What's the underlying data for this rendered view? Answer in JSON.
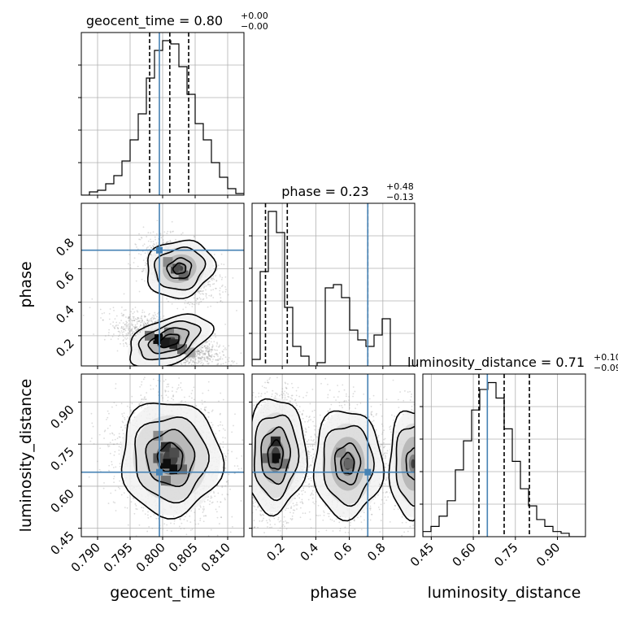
{
  "chart_data": {
    "type": "corner",
    "grid": true,
    "colors": {
      "truth": "#4682b4",
      "histogram": "#000000",
      "quantile": "#000000",
      "density_low": "#e8e8e8",
      "density_high": "#000000",
      "grid": "#b0b0b0",
      "samples": "#9a9a9a"
    },
    "parameters": [
      {
        "name": "geocent_time",
        "axis_label": "geocent_time",
        "lim": [
          0.7875,
          0.8125
        ],
        "ticks": [
          "0.790",
          "0.795",
          "0.800",
          "0.805",
          "0.810"
        ],
        "tick_values": [
          0.79,
          0.795,
          0.8,
          0.805,
          0.81
        ],
        "truth": 0.7995
      },
      {
        "name": "phase",
        "axis_label": "phase",
        "lim": [
          0.02,
          0.99
        ],
        "ticks": [
          "0.2",
          "0.4",
          "0.6",
          "0.8"
        ],
        "tick_values": [
          0.2,
          0.4,
          0.6,
          0.8
        ],
        "truth": 0.71
      },
      {
        "name": "luminosity_distance",
        "axis_label": "luminosity_distance",
        "lim": [
          0.42,
          1.0
        ],
        "ticks": [
          "0.45",
          "0.60",
          "0.75",
          "0.90"
        ],
        "tick_values": [
          0.45,
          0.6,
          0.75,
          0.9
        ],
        "truth": 0.65
      }
    ],
    "titles": [
      {
        "param": "geocent_time",
        "text": "geocent_time = 0.80",
        "plus": "+0.00",
        "minus": "−0.00"
      },
      {
        "param": "phase",
        "text": "phase = 0.23",
        "plus": "+0.48",
        "minus": "−0.13"
      },
      {
        "param": "luminosity_distance",
        "text": "luminosity_distance = 0.71",
        "plus": "+0.10",
        "minus": "−0.09"
      }
    ],
    "histograms": [
      {
        "param": "geocent_time",
        "bin_start": 0.7875,
        "bin_width": 0.00125,
        "counts": [
          0,
          2,
          3,
          7,
          12,
          21,
          34,
          50,
          72,
          89,
          95,
          93,
          79,
          62,
          44,
          34,
          20,
          11,
          4,
          1
        ],
        "ymax": 100,
        "quantiles": [
          0.798,
          0.8011,
          0.804
        ]
      },
      {
        "param": "phase",
        "bin_start": 0.02,
        "bin_width": 0.0485,
        "counts": [
          4,
          58,
          95,
          82,
          36,
          12,
          6,
          0,
          2,
          48,
          50,
          42,
          22,
          16,
          12,
          19,
          29,
          0,
          0,
          0
        ],
        "ymax": 100,
        "quantiles": [
          0.1,
          0.23,
          0.71
        ]
      },
      {
        "param": "luminosity_distance",
        "bin_start": 0.42,
        "bin_width": 0.029,
        "counts": [
          3,
          6,
          12,
          21,
          39,
          56,
          74,
          86,
          90,
          81,
          63,
          44,
          28,
          18,
          10,
          6,
          3,
          2,
          0,
          0
        ],
        "ymax": 95,
        "quantiles": [
          0.62,
          0.71,
          0.8
        ]
      }
    ],
    "pairs": [
      {
        "x": "geocent_time",
        "y": "phase",
        "blobs": [
          {
            "cx": 0.801,
            "cy": 0.17,
            "sx": 0.0028,
            "sy": 0.055,
            "rho": -0.55,
            "weight": 1.0
          },
          {
            "cx": 0.8026,
            "cy": 0.6,
            "sx": 0.0022,
            "sy": 0.07,
            "rho": -0.4,
            "weight": 0.55
          }
        ],
        "density_cells": [
          {
            "x": 0.7993,
            "y": 0.18,
            "d": 0.95
          },
          {
            "x": 0.8005,
            "y": 0.16,
            "d": 0.9
          },
          {
            "x": 0.8018,
            "y": 0.15,
            "d": 0.85
          },
          {
            "x": 0.798,
            "y": 0.2,
            "d": 0.55
          },
          {
            "x": 0.803,
            "y": 0.12,
            "d": 0.6
          },
          {
            "x": 0.801,
            "y": 0.22,
            "d": 0.5
          },
          {
            "x": 0.8043,
            "y": 0.1,
            "d": 0.35
          },
          {
            "x": 0.802,
            "y": 0.6,
            "d": 0.7
          },
          {
            "x": 0.8032,
            "y": 0.56,
            "d": 0.6
          },
          {
            "x": 0.8008,
            "y": 0.64,
            "d": 0.45
          }
        ]
      },
      {
        "x": "geocent_time",
        "y": "luminosity_distance",
        "blobs": [
          {
            "cx": 0.8012,
            "cy": 0.7,
            "sx": 0.0032,
            "sy": 0.085,
            "rho": -0.1,
            "weight": 1.0
          }
        ],
        "density_cells": [
          {
            "x": 0.8005,
            "y": 0.68,
            "d": 0.95
          },
          {
            "x": 0.8018,
            "y": 0.66,
            "d": 0.95
          },
          {
            "x": 0.8005,
            "y": 0.74,
            "d": 0.8
          },
          {
            "x": 0.7993,
            "y": 0.7,
            "d": 0.65
          },
          {
            "x": 0.8018,
            "y": 0.72,
            "d": 0.7
          },
          {
            "x": 0.803,
            "y": 0.66,
            "d": 0.6
          },
          {
            "x": 0.8005,
            "y": 0.62,
            "d": 0.55
          },
          {
            "x": 0.7993,
            "y": 0.78,
            "d": 0.45
          }
        ]
      },
      {
        "x": "phase",
        "y": "luminosity_distance",
        "blobs": [
          {
            "cx": 0.16,
            "cy": 0.71,
            "sx": 0.075,
            "sy": 0.085,
            "rho": 0.05,
            "weight": 1.0
          },
          {
            "cx": 0.59,
            "cy": 0.68,
            "sx": 0.085,
            "sy": 0.08,
            "rho": 0.0,
            "weight": 0.6
          },
          {
            "cx": 0.98,
            "cy": 0.68,
            "sx": 0.06,
            "sy": 0.08,
            "rho": 0.0,
            "weight": 0.35
          }
        ],
        "density_cells": [
          {
            "x": 0.16,
            "y": 0.7,
            "d": 0.95
          },
          {
            "x": 0.16,
            "y": 0.76,
            "d": 0.85
          },
          {
            "x": 0.11,
            "y": 0.7,
            "d": 0.6
          },
          {
            "x": 0.21,
            "y": 0.68,
            "d": 0.55
          },
          {
            "x": 0.6,
            "y": 0.68,
            "d": 0.6
          },
          {
            "x": 0.55,
            "y": 0.72,
            "d": 0.45
          }
        ]
      }
    ]
  }
}
